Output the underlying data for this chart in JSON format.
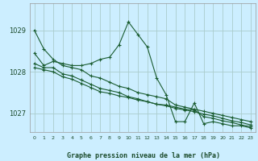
{
  "background_color": "#cceeff",
  "plot_bg_color": "#cceeff",
  "grid_color": "#aacccc",
  "line_color": "#1a5c30",
  "marker_color": "#1a5c30",
  "xlabel": "Graphe pression niveau de la mer (hPa)",
  "xlim": [
    -0.5,
    23.5
  ],
  "ylim": [
    1026.55,
    1029.65
  ],
  "yticks": [
    1027,
    1028,
    1029
  ],
  "xticks": [
    0,
    1,
    2,
    3,
    4,
    5,
    6,
    7,
    8,
    9,
    10,
    11,
    12,
    13,
    14,
    15,
    16,
    17,
    18,
    19,
    20,
    21,
    22,
    23
  ],
  "series": [
    [
      1029.0,
      1028.55,
      1028.3,
      1028.15,
      1028.1,
      1028.05,
      1027.9,
      1027.85,
      1027.75,
      1027.65,
      1027.6,
      1027.5,
      1027.45,
      1027.4,
      1027.35,
      1027.2,
      1027.15,
      1027.1,
      1027.05,
      1027.0,
      1026.95,
      1026.9,
      1026.85,
      1026.8
    ],
    [
      1028.45,
      1028.15,
      1028.25,
      1028.2,
      1028.15,
      1028.15,
      1028.2,
      1028.3,
      1028.35,
      1028.65,
      1029.2,
      1028.9,
      1028.6,
      1027.85,
      1027.45,
      1026.8,
      1026.8,
      1027.25,
      1026.75,
      1026.8,
      1026.75,
      1026.7,
      1026.7,
      1026.65
    ],
    [
      1028.2,
      1028.1,
      1028.1,
      1027.95,
      1027.9,
      1027.8,
      1027.7,
      1027.6,
      1027.55,
      1027.5,
      1027.4,
      1027.35,
      1027.28,
      1027.22,
      1027.2,
      1027.15,
      1027.1,
      1027.08,
      1026.92,
      1026.88,
      1026.82,
      1026.78,
      1026.72,
      1026.68
    ],
    [
      1028.1,
      1028.05,
      1028.0,
      1027.88,
      1027.82,
      1027.72,
      1027.62,
      1027.52,
      1027.48,
      1027.42,
      1027.38,
      1027.32,
      1027.28,
      1027.22,
      1027.18,
      1027.12,
      1027.08,
      1027.04,
      1026.98,
      1026.94,
      1026.88,
      1026.82,
      1026.78,
      1026.72
    ]
  ]
}
